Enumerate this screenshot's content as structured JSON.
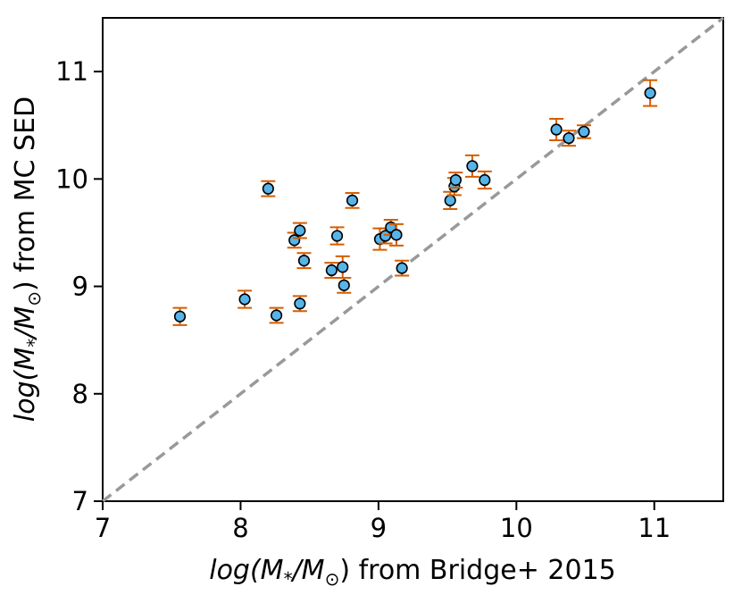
{
  "chart_data": {
    "type": "scatter",
    "xlabel_prefix": "log(M",
    "xlabel_sub_star": "*",
    "xlabel_slash": "/M",
    "xlabel_sub_sun": "⊙",
    "xlabel_close": ")",
    "xlabel_rest": " from Bridge+ 2015",
    "ylabel_rest": " from MC SED",
    "xlim": [
      7,
      11.5
    ],
    "ylim": [
      7,
      11.5
    ],
    "xticks": [
      7,
      8,
      9,
      10,
      11
    ],
    "yticks": [
      7,
      8,
      9,
      10,
      11
    ],
    "one_to_one_line": true,
    "colors": {
      "marker_fill": "#56b4e9",
      "marker_edge": "#000000",
      "errorbar": "#d55e00",
      "reference_line": "#999999"
    },
    "points": [
      {
        "x": 7.56,
        "y": 8.72,
        "err": 0.08
      },
      {
        "x": 8.03,
        "y": 8.88,
        "err": 0.08
      },
      {
        "x": 8.2,
        "y": 9.91,
        "err": 0.07
      },
      {
        "x": 8.26,
        "y": 8.73,
        "err": 0.07
      },
      {
        "x": 8.39,
        "y": 9.43,
        "err": 0.07
      },
      {
        "x": 8.43,
        "y": 9.52,
        "err": 0.07
      },
      {
        "x": 8.43,
        "y": 8.84,
        "err": 0.07
      },
      {
        "x": 8.46,
        "y": 9.24,
        "err": 0.07
      },
      {
        "x": 8.66,
        "y": 9.15,
        "err": 0.07
      },
      {
        "x": 8.7,
        "y": 9.47,
        "err": 0.08
      },
      {
        "x": 8.74,
        "y": 9.18,
        "err": 0.1
      },
      {
        "x": 8.75,
        "y": 9.01,
        "err": 0.07
      },
      {
        "x": 8.81,
        "y": 9.8,
        "err": 0.07
      },
      {
        "x": 9.01,
        "y": 9.44,
        "err": 0.1
      },
      {
        "x": 9.05,
        "y": 9.47,
        "err": 0.07
      },
      {
        "x": 9.09,
        "y": 9.55,
        "err": 0.07
      },
      {
        "x": 9.13,
        "y": 9.48,
        "err": 0.1
      },
      {
        "x": 9.17,
        "y": 9.17,
        "err": 0.07
      },
      {
        "x": 9.52,
        "y": 9.8,
        "err": 0.08
      },
      {
        "x": 9.55,
        "y": 9.93,
        "err": 0.08
      },
      {
        "x": 9.56,
        "y": 9.99,
        "err": 0.07
      },
      {
        "x": 9.68,
        "y": 10.12,
        "err": 0.1
      },
      {
        "x": 9.77,
        "y": 9.99,
        "err": 0.08
      },
      {
        "x": 10.29,
        "y": 10.46,
        "err": 0.1
      },
      {
        "x": 10.38,
        "y": 10.38,
        "err": 0.07
      },
      {
        "x": 10.49,
        "y": 10.44,
        "err": 0.06
      },
      {
        "x": 10.97,
        "y": 10.8,
        "err": 0.12
      }
    ]
  }
}
